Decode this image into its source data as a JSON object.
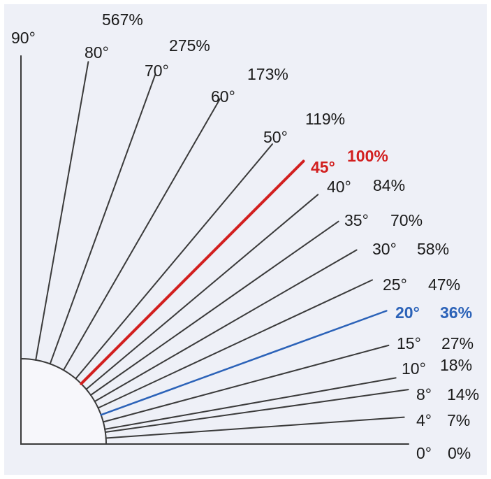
{
  "colors": {
    "background": "#ffffff",
    "panel": "#eef0f7",
    "quadrant_fill": "#f7f7fb",
    "line": "#3a3a3a",
    "text": "#1a1a1a",
    "highlight_red": "#d21f1f",
    "highlight_blue": "#2b62b8"
  },
  "slopes": [
    {
      "angle": "0°",
      "percent": "0%",
      "degrees": 0,
      "highlight": "none"
    },
    {
      "angle": "4°",
      "percent": "7%",
      "degrees": 4,
      "highlight": "none"
    },
    {
      "angle": "8°",
      "percent": "14%",
      "degrees": 8,
      "highlight": "none"
    },
    {
      "angle": "10°",
      "percent": "18%",
      "degrees": 10,
      "highlight": "none"
    },
    {
      "angle": "15°",
      "percent": "27%",
      "degrees": 15,
      "highlight": "none"
    },
    {
      "angle": "20°",
      "percent": "36%",
      "degrees": 20,
      "highlight": "blue"
    },
    {
      "angle": "25°",
      "percent": "47%",
      "degrees": 25,
      "highlight": "none"
    },
    {
      "angle": "30°",
      "percent": "58%",
      "degrees": 30,
      "highlight": "none"
    },
    {
      "angle": "35°",
      "percent": "70%",
      "degrees": 35,
      "highlight": "none"
    },
    {
      "angle": "40°",
      "percent": "84%",
      "degrees": 40,
      "highlight": "none"
    },
    {
      "angle": "45°",
      "percent": "100%",
      "degrees": 45,
      "highlight": "red"
    },
    {
      "angle": "50°",
      "percent": "119%",
      "degrees": 50,
      "highlight": "none"
    },
    {
      "angle": "60°",
      "percent": "173%",
      "degrees": 60,
      "highlight": "none"
    },
    {
      "angle": "70°",
      "percent": "275%",
      "degrees": 70,
      "highlight": "none"
    },
    {
      "angle": "80°",
      "percent": "567%",
      "degrees": 80,
      "highlight": "none"
    },
    {
      "angle": "90°",
      "percent": "",
      "degrees": 90,
      "highlight": "none"
    }
  ]
}
